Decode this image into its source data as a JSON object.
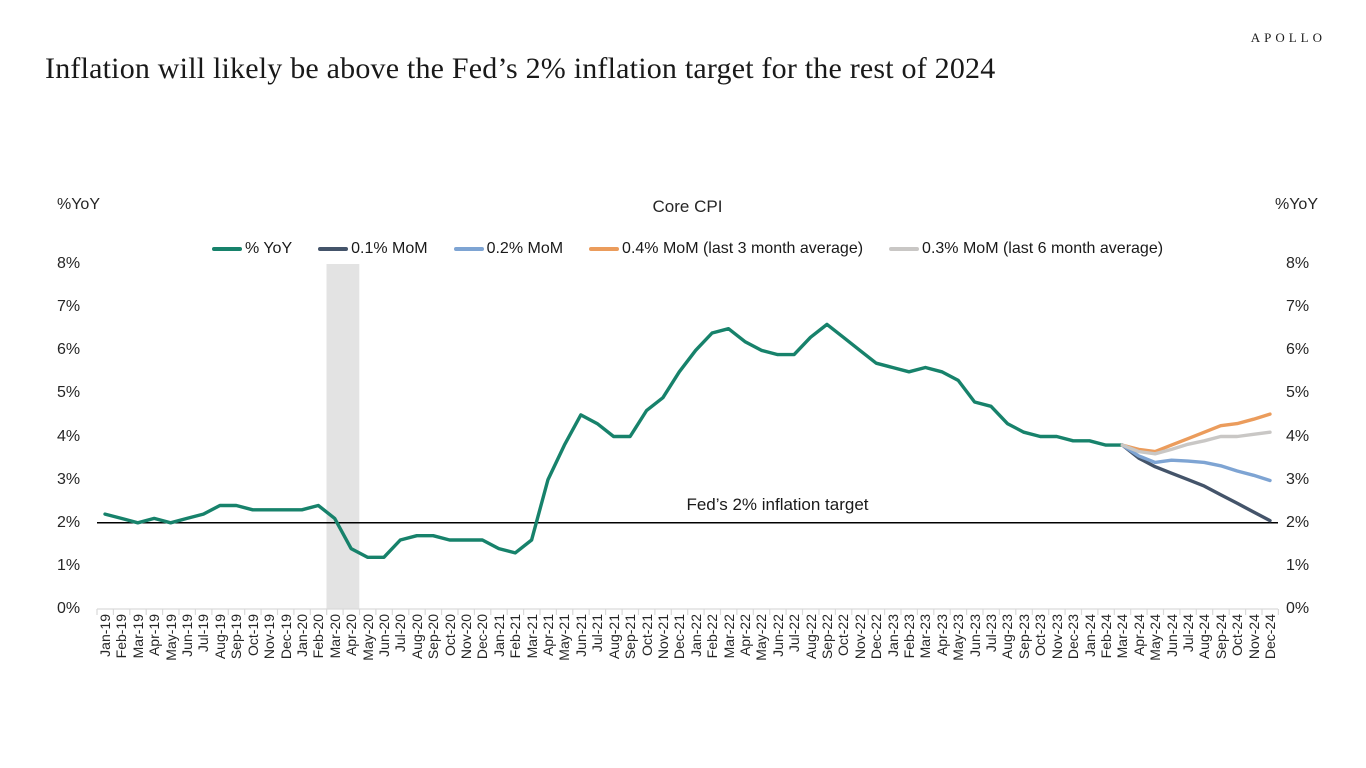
{
  "header": {
    "logo": "APOLLO",
    "title": "Inflation will likely be above the Fed’s 2% inflation target for the rest of 2024"
  },
  "chart": {
    "title": "Core CPI",
    "y_axis_label_left": "%YoY",
    "y_axis_label_right": "%YoY",
    "annotation": "Fed’s 2% inflation target",
    "colors": {
      "axis_line": "#d9d9d9",
      "target_line": "#000000",
      "recession_band": "#e3e3e3"
    }
  },
  "chart_data": {
    "type": "line",
    "title": "Core CPI",
    "xlabel": "",
    "ylabel": "%YoY",
    "ylim": [
      0,
      8
    ],
    "grid": false,
    "legend_position": "top-center",
    "y_ticks": [
      "0%",
      "1%",
      "2%",
      "3%",
      "4%",
      "5%",
      "6%",
      "7%",
      "8%"
    ],
    "x": [
      "Jan-19",
      "Feb-19",
      "Mar-19",
      "Apr-19",
      "May-19",
      "Jun-19",
      "Jul-19",
      "Aug-19",
      "Sep-19",
      "Oct-19",
      "Nov-19",
      "Dec-19",
      "Jan-20",
      "Feb-20",
      "Mar-20",
      "Apr-20",
      "May-20",
      "Jun-20",
      "Jul-20",
      "Aug-20",
      "Sep-20",
      "Oct-20",
      "Nov-20",
      "Dec-20",
      "Jan-21",
      "Feb-21",
      "Mar-21",
      "Apr-21",
      "May-21",
      "Jun-21",
      "Jul-21",
      "Aug-21",
      "Sep-21",
      "Oct-21",
      "Nov-21",
      "Dec-21",
      "Jan-22",
      "Feb-22",
      "Mar-22",
      "Apr-22",
      "May-22",
      "Jun-22",
      "Jul-22",
      "Aug-22",
      "Sep-22",
      "Oct-22",
      "Nov-22",
      "Dec-22",
      "Jan-23",
      "Feb-23",
      "Mar-23",
      "Apr-23",
      "May-23",
      "Jun-23",
      "Jul-23",
      "Aug-23",
      "Sep-23",
      "Oct-23",
      "Nov-23",
      "Dec-23",
      "Jan-24",
      "Feb-24",
      "Mar-24",
      "Apr-24",
      "May-24",
      "Jun-24",
      "Jul-24",
      "Aug-24",
      "Sep-24",
      "Oct-24",
      "Nov-24",
      "Dec-24"
    ],
    "recession_band": {
      "from": "Mar-20",
      "to": "Apr-20",
      "color": "#e3e3e3"
    },
    "target_line": {
      "value": 2,
      "label": "Fed’s 2% inflation target",
      "color": "#000000"
    },
    "series": [
      {
        "name": "% YoY",
        "color": "#17826b",
        "start": 0,
        "values": [
          2.2,
          2.1,
          2.0,
          2.1,
          2.0,
          2.1,
          2.2,
          2.4,
          2.4,
          2.3,
          2.3,
          2.3,
          2.3,
          2.4,
          2.1,
          1.4,
          1.2,
          1.2,
          1.6,
          1.7,
          1.7,
          1.6,
          1.6,
          1.6,
          1.4,
          1.3,
          1.6,
          3.0,
          3.8,
          4.5,
          4.3,
          4.0,
          4.0,
          4.6,
          4.9,
          5.5,
          6.0,
          6.4,
          6.5,
          6.2,
          6.0,
          5.9,
          5.9,
          6.3,
          6.6,
          6.3,
          6.0,
          5.7,
          5.6,
          5.5,
          5.6,
          5.5,
          5.3,
          4.8,
          4.7,
          4.3,
          4.1,
          4.0,
          4.0,
          3.9,
          3.9,
          3.8,
          3.8
        ]
      },
      {
        "name": "0.1% MoM",
        "color": "#44546a",
        "start": 62,
        "values": [
          3.8,
          3.5,
          3.3,
          3.15,
          3.0,
          2.85,
          2.65,
          2.45,
          2.25,
          2.05
        ]
      },
      {
        "name": "0.2% MoM",
        "color": "#7ea4d3",
        "start": 62,
        "values": [
          3.8,
          3.55,
          3.4,
          3.45,
          3.43,
          3.4,
          3.32,
          3.2,
          3.1,
          2.98
        ]
      },
      {
        "name": "0.4% MoM (last 3 month average)",
        "color": "#eb9c5c",
        "start": 62,
        "values": [
          3.8,
          3.7,
          3.65,
          3.8,
          3.95,
          4.1,
          4.25,
          4.3,
          4.4,
          4.52
        ]
      },
      {
        "name": "0.3% MoM (last 6 month average)",
        "color": "#c9c7c5",
        "start": 62,
        "values": [
          3.8,
          3.65,
          3.6,
          3.7,
          3.82,
          3.9,
          4.0,
          4.0,
          4.05,
          4.1
        ]
      }
    ]
  }
}
